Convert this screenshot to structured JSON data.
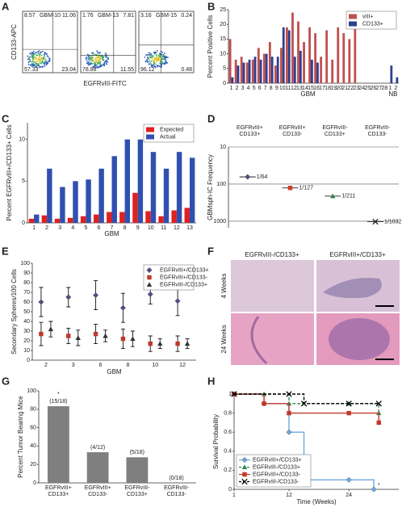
{
  "flow_cytometry": {
    "panel": "A",
    "ylabel": "CD133-APC",
    "xlabel": "EGFRvIII-FITC",
    "plots": [
      {
        "title": "GBM-10",
        "quadrants": [
          8.57,
          11.06,
          57.33,
          23.04
        ]
      },
      {
        "title": "GBM-13",
        "quadrants": [
          1.76,
          7.81,
          78.88,
          11.55
        ]
      },
      {
        "title": "GBM-15",
        "quadrants": [
          3.16,
          0.24,
          96.12,
          0.48
        ]
      }
    ]
  },
  "histology": {
    "panel": "F",
    "columns": [
      "EGFRvIII-/CD133+",
      "EGFRvIII+/CD133+"
    ],
    "rows": [
      "4 Weeks",
      "24 Weeks"
    ]
  },
  "chart_data": [
    {
      "panel": "B",
      "type": "bar",
      "ylabel": "Percent Positive Cells",
      "xlabel": "GBM",
      "group_label": "NB",
      "categories": [
        "1",
        "2",
        "3",
        "4",
        "5",
        "6",
        "7",
        "8",
        "9",
        "10",
        "11",
        "12",
        "13",
        "14",
        "15",
        "16",
        "17",
        "18",
        "19",
        "20",
        "21",
        "22",
        "23",
        "24",
        "25",
        "26",
        "27",
        "28",
        "1",
        "2"
      ],
      "series": [
        {
          "name": "vIII+",
          "color": "#c0504d",
          "values": [
            15,
            8,
            9,
            7,
            8,
            12,
            10,
            14,
            6,
            12,
            19,
            24,
            21,
            14,
            19,
            17,
            9,
            18,
            8,
            19,
            17,
            15,
            22,
            0,
            0,
            0,
            0,
            0,
            0,
            0
          ]
        },
        {
          "name": "CD133+",
          "color": "#2e3f8f",
          "values": [
            2,
            6,
            7,
            8,
            9,
            8,
            10,
            9,
            9,
            19,
            18,
            9,
            11,
            0,
            8,
            7,
            0,
            0,
            0,
            0,
            0,
            0,
            0,
            0,
            0,
            0,
            0,
            0,
            6,
            2
          ]
        }
      ],
      "ylim": [
        0,
        25
      ],
      "yticks": [
        0,
        5,
        10,
        15,
        20,
        25
      ],
      "legend": "upper right"
    },
    {
      "panel": "C",
      "type": "bar",
      "ylabel": "Percent EGFRvIII+/CD133+ Cells",
      "xlabel": "GBM",
      "categories": [
        "1",
        "2",
        "3",
        "4",
        "5",
        "6",
        "7",
        "8",
        "9",
        "10",
        "11",
        "12",
        "13"
      ],
      "series": [
        {
          "name": "Expected",
          "color": "#e02020",
          "values": [
            0.5,
            0.9,
            0.5,
            0.6,
            0.8,
            1.0,
            1.3,
            1.3,
            3.6,
            1.4,
            0.8,
            1.5,
            1.8
          ]
        },
        {
          "name": "Actual",
          "color": "#3050b0",
          "values": [
            1.0,
            6.5,
            4.3,
            5.0,
            5.2,
            6.5,
            8.0,
            10.0,
            10.0,
            8.5,
            6.5,
            8.5,
            7.8
          ]
        }
      ],
      "ylim": [
        0,
        12
      ],
      "yticks": [
        0,
        5,
        10
      ],
      "legend": "upper right"
    },
    {
      "panel": "D",
      "type": "scatter",
      "ylabel": "GBMsph-IC Frequency",
      "log_y": true,
      "y_inverted": true,
      "categories": [
        [
          "EGFRvIII+",
          "CD133+"
        ],
        [
          "EGFRvIII+",
          "CD133-"
        ],
        [
          "EGFRvIII-",
          "CD133+"
        ],
        [
          "EGFRvIII-",
          "CD133-"
        ]
      ],
      "values": [
        64,
        127,
        211,
        1032
      ],
      "value_labels": [
        "1/64",
        "1/127",
        "1/211",
        "1/1032"
      ],
      "colors": [
        "#5a4a8a",
        "#d03a2a",
        "#2e7d4f",
        "#222222"
      ],
      "markers": [
        "diamond",
        "square",
        "triangle",
        "x"
      ],
      "ylim": [
        10,
        1500
      ],
      "yticks": [
        10,
        100,
        1000
      ],
      "grid": true
    },
    {
      "panel": "E",
      "type": "errorbar",
      "ylabel": "Secondary Spheres/100 Cells",
      "xlabel": "GBM",
      "categories": [
        "2",
        "3",
        "6",
        "8",
        "10",
        "12"
      ],
      "series": [
        {
          "name": "EGFRvIII+/CD133+",
          "color": "#5a4a8a",
          "marker": "diamond",
          "values": [
            60,
            65,
            67,
            54,
            68,
            61
          ],
          "error": [
            15,
            10,
            15,
            15,
            10,
            15
          ]
        },
        {
          "name": "EGFRvIII+/CD133-",
          "color": "#c0392b",
          "marker": "square",
          "values": [
            27,
            25,
            27,
            22,
            17,
            17
          ],
          "error": [
            12,
            8,
            10,
            10,
            8,
            8
          ]
        },
        {
          "name": "EGFRvIII-/CD133+",
          "color": "#333333",
          "marker": "triangle",
          "values": [
            32,
            23,
            25,
            22,
            17,
            17
          ],
          "error": [
            8,
            8,
            6,
            8,
            5,
            5
          ]
        }
      ],
      "ylim": [
        0,
        100
      ],
      "yticks": [
        0,
        10,
        20,
        30,
        40,
        50,
        60,
        70,
        80,
        90,
        100
      ],
      "legend": "upper right"
    },
    {
      "panel": "G",
      "type": "bar",
      "ylabel": "Percent Tumor Bearing Mice",
      "categories": [
        [
          "EGFRvIII+",
          "CD133+"
        ],
        [
          "EGFRvIII+",
          "CD133-"
        ],
        [
          "EGFRvIII-",
          "CD133+"
        ],
        [
          "EGFRvIII-",
          "CD133-"
        ]
      ],
      "values": [
        83.3,
        33.3,
        27.8,
        0
      ],
      "value_labels": [
        "(15/18)",
        "(4/12)",
        "(5/18)",
        "(0/18)"
      ],
      "color": "#7f7f7f",
      "annotation": "*",
      "ylim": [
        0,
        100
      ],
      "yticks": [
        0,
        20,
        40,
        60,
        80,
        100
      ]
    },
    {
      "panel": "H",
      "type": "line",
      "step": true,
      "ylabel": "Survival Probability",
      "xlabel": "Time (Weeks)",
      "annotation": "*",
      "series": [
        {
          "name": "EGFRvIII+/CD133+",
          "color": "#6fa8dc",
          "marker": "diamond",
          "dashed": false,
          "x": [
            1,
            7,
            12,
            15,
            24,
            29
          ],
          "values": [
            1,
            0.9,
            0.6,
            0.1,
            0.1,
            0
          ]
        },
        {
          "name": "EGFRvIII-/CD133+",
          "color": "#2e8b57",
          "marker": "triangle",
          "dashed": true,
          "x": [
            1,
            7,
            12,
            24,
            30
          ],
          "values": [
            1,
            1,
            0.9,
            0.9,
            0.8
          ]
        },
        {
          "name": "EGFRvIII+/CD133-",
          "color": "#c0392b",
          "marker": "square",
          "dashed": false,
          "x": [
            1,
            7,
            12,
            24,
            30
          ],
          "values": [
            1,
            0.9,
            0.8,
            0.8,
            0.7
          ]
        },
        {
          "name": "EGFRvIII-/CD133-",
          "color": "#000000",
          "marker": "x",
          "dashed": true,
          "x": [
            1,
            12,
            15,
            24,
            30
          ],
          "values": [
            1,
            1,
            0.9,
            0.9,
            0.9
          ]
        }
      ],
      "xlim": [
        1,
        34
      ],
      "xticks": [
        1,
        12,
        24
      ],
      "ylim": [
        0,
        1
      ],
      "yticks": [
        0,
        0.2,
        0.4,
        0.6,
        0.8,
        1
      ],
      "legend": "lower left"
    }
  ]
}
